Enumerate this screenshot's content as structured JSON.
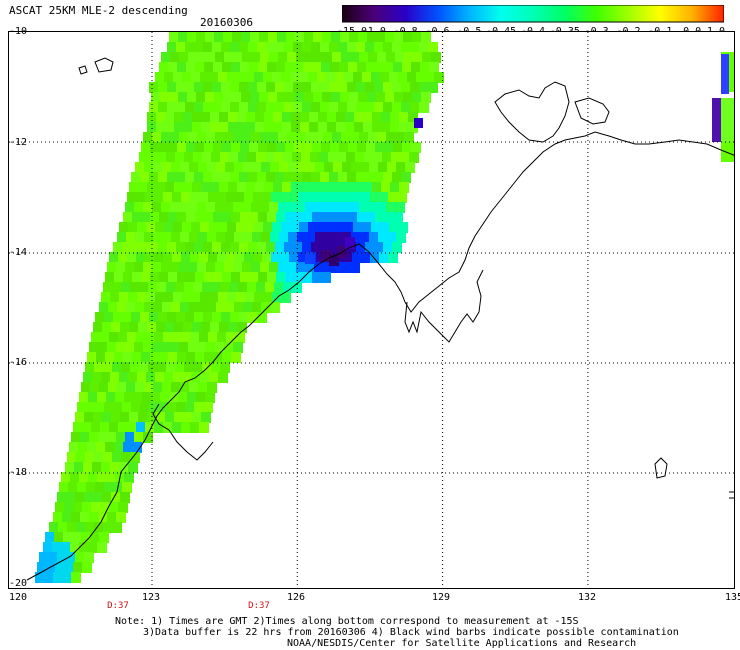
{
  "header": {
    "title": "ASCAT 25KM MLE-2 descending",
    "date": "20160306"
  },
  "colorbar": {
    "labels": [
      "-15.0",
      "-1.0",
      "-0.8",
      "-0.6",
      "-0.5",
      "-0.45",
      "-0.4",
      "-0.35",
      "-0.3",
      "-0.2",
      "-0.1",
      "0.0",
      "1.0"
    ],
    "colors": [
      "#1a0010",
      "#4b0078",
      "#2a00c8",
      "#0050ff",
      "#00b4ff",
      "#00ffee",
      "#00ffb4",
      "#00ff64",
      "#40ff00",
      "#a0ff00",
      "#ffff00",
      "#ffb000",
      "#ff2000"
    ]
  },
  "axes": {
    "lat_labels": [
      "-10",
      "-12",
      "-14",
      "-16",
      "-18",
      "-20"
    ],
    "lon_labels": [
      "120",
      "123",
      "126",
      "129",
      "132",
      "135"
    ],
    "time_labels": [
      "D:37",
      "D:37"
    ]
  },
  "notes": {
    "line1": "Note: 1) Times are GMT 2)Times along bottom correspond to measurement at -15S",
    "line2": "3)Data buffer is 22 hrs from 20160306 4) Black wind barbs indicate possible contamination",
    "line3": "NOAA/NESDIS/Center for Satellite Applications and Research"
  }
}
